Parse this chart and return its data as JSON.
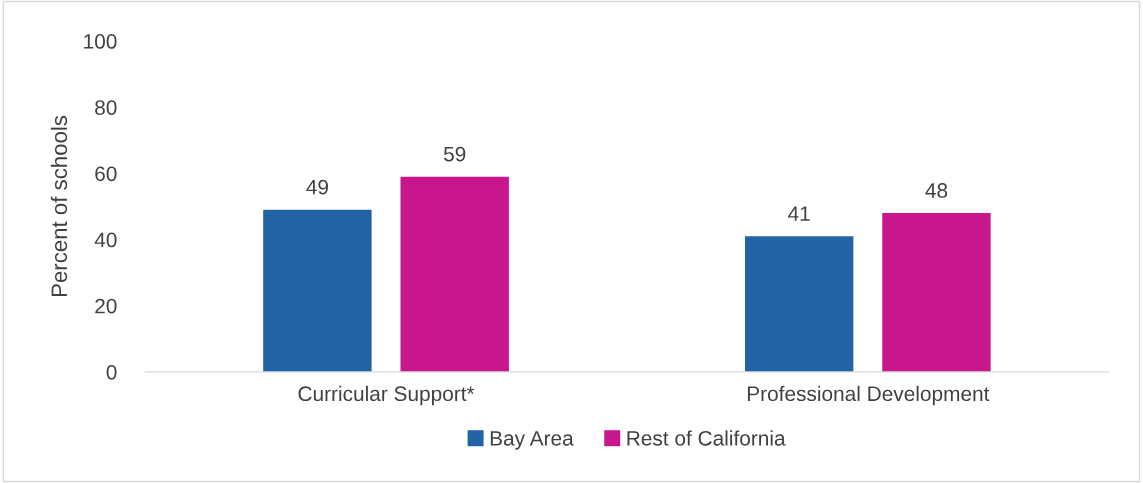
{
  "chart_data": {
    "type": "bar",
    "ylabel": "Percent of schools",
    "categories": [
      "Curricular Support*",
      "Professional Development"
    ],
    "series": [
      {
        "name": "Bay Area",
        "color": "#2163a5",
        "values": [
          49,
          41
        ]
      },
      {
        "name": "Rest of California",
        "color": "#c8178c",
        "values": [
          59,
          48
        ]
      }
    ],
    "ylim": [
      0,
      100
    ],
    "yticks": [
      0,
      20,
      40,
      60,
      80,
      100
    ],
    "grid": false,
    "legend": "bottom",
    "data_labels": true
  }
}
